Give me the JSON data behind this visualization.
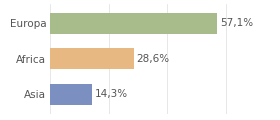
{
  "categories": [
    "Europa",
    "Africa",
    "Asia"
  ],
  "values": [
    57.1,
    28.6,
    14.3
  ],
  "labels": [
    "57,1%",
    "28,6%",
    "14,3%"
  ],
  "bar_colors": [
    "#a8bb8a",
    "#e8b882",
    "#7b8fc0"
  ],
  "background_color": "#ffffff",
  "xlim": [
    0,
    67
  ],
  "bar_height": 0.6,
  "label_fontsize": 7.5,
  "category_fontsize": 7.5
}
